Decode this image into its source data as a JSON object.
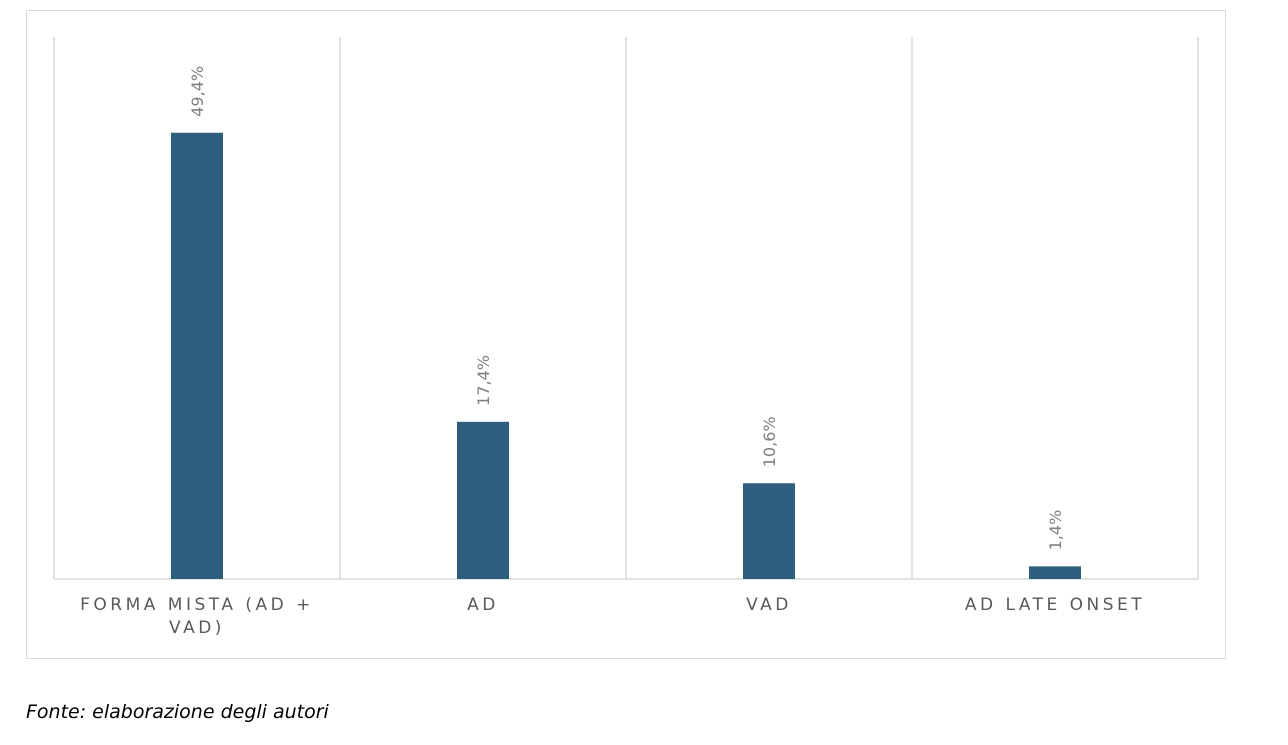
{
  "chart_data": {
    "type": "bar",
    "categories": [
      "FORMA MISTA (AD + VAD)",
      "AD",
      "VAD",
      "AD LATE ONSET"
    ],
    "values": [
      49.4,
      17.4,
      10.6,
      1.4
    ],
    "data_labels": [
      "49,4%",
      "17,4%",
      "10,6%",
      "1,4%"
    ],
    "title": "",
    "xlabel": "",
    "ylabel": "",
    "unit": "%",
    "ylim": [
      0,
      60
    ],
    "grid": "vertical category separators",
    "legend": "none",
    "bar_color": "#2e5f7f",
    "label_color": "#808080"
  },
  "source_note": "Fonte: elaborazione degli autori"
}
